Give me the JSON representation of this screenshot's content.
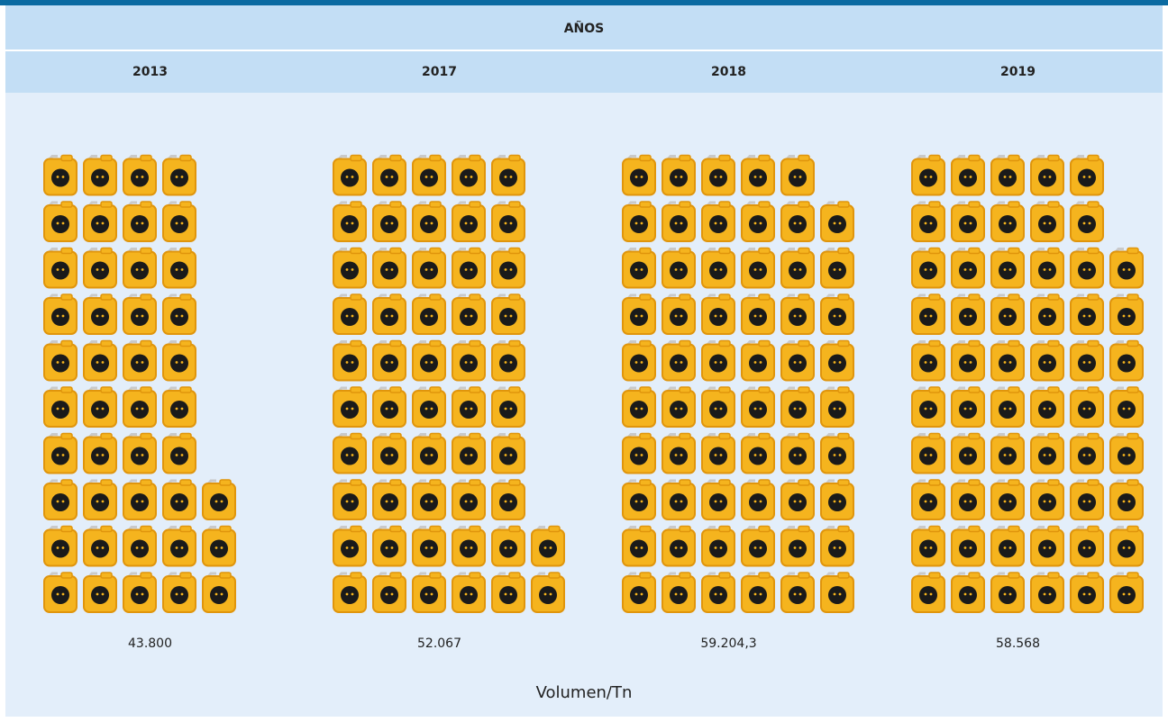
{
  "chart_data": {
    "type": "pictograph",
    "title": "AÑOS",
    "categories": [
      "2013",
      "2017",
      "2018",
      "2019"
    ],
    "values": [
      43800,
      52067,
      59204.3,
      58568
    ],
    "value_labels": [
      "43.800",
      "52.067",
      "59.204,3",
      "58.568"
    ],
    "x_label": "Volumen/Tn",
    "color": "#f5b41e"
  }
}
